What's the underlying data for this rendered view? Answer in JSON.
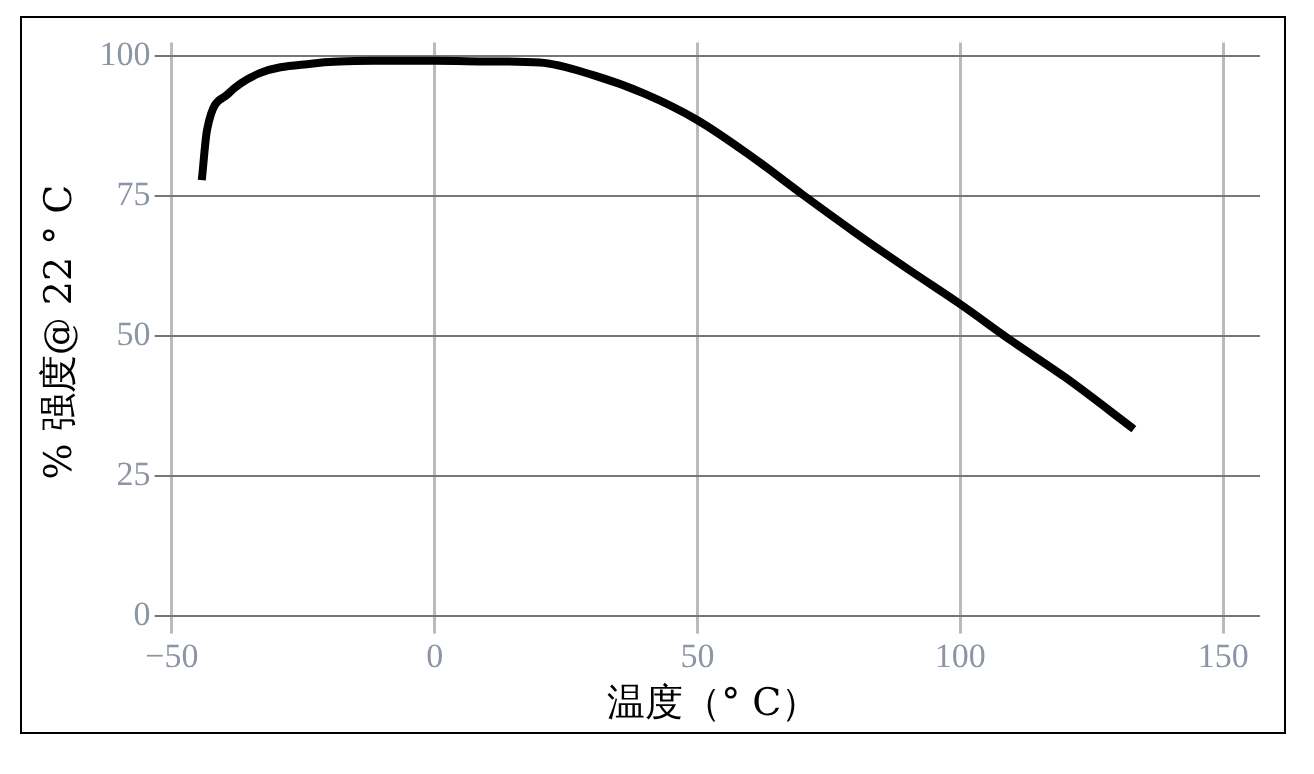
{
  "chart_data": {
    "type": "line",
    "xlabel": "温度（° C）",
    "ylabel": "% 强度@ 22 ° C",
    "xlim": [
      -51,
      157
    ],
    "xticks": [
      -50,
      0,
      50,
      100,
      150
    ],
    "ylim": [
      -1,
      102.5
    ],
    "yticks": [
      0,
      25,
      50,
      75,
      100
    ],
    "grid": true,
    "legend": false,
    "marker": "none",
    "line_style": "solid",
    "series": [
      {
        "color": "#000000",
        "x": [
          -44.3,
          -43.3,
          -39.3,
          -33.3,
          -23.5,
          -11.6,
          0,
          10,
          20,
          30,
          40,
          50,
          60,
          70,
          80,
          90,
          100,
          110,
          120,
          133
        ],
        "values": [
          77.9,
          86.9,
          93.3,
          97,
          98.7,
          99.2,
          99.2,
          99.1,
          98.9,
          96.7,
          93.3,
          88.6,
          82.3,
          75.3,
          68.5,
          62,
          55.7,
          49,
          42.6,
          33.4
        ]
      }
    ]
  }
}
